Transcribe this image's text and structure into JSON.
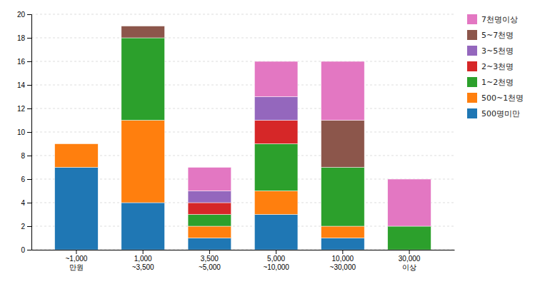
{
  "chart_data": {
    "type": "bar",
    "stacked": true,
    "categories": [
      "~1,000\n만원",
      "1,000\n~3,500",
      "3,500\n~5,000",
      "5,000\n~10,000",
      "10,000\n~30,000",
      "30,000\n이상"
    ],
    "series": [
      {
        "name": "500명미만",
        "values": [
          7,
          4,
          1,
          3,
          1,
          0
        ]
      },
      {
        "name": "500~1천명",
        "values": [
          2,
          7,
          1,
          2,
          1,
          0
        ]
      },
      {
        "name": "1~2천명",
        "values": [
          0,
          7,
          1,
          4,
          5,
          2
        ]
      },
      {
        "name": "2~3천명",
        "values": [
          0,
          0,
          1,
          2,
          0,
          0
        ]
      },
      {
        "name": "3~5천명",
        "values": [
          0,
          0,
          1,
          2,
          0,
          0
        ]
      },
      {
        "name": "5~7천명",
        "values": [
          0,
          1,
          0,
          0,
          4,
          0
        ]
      },
      {
        "name": "7천명이상",
        "values": [
          0,
          0,
          2,
          3,
          5,
          4
        ]
      }
    ],
    "ylim": [
      0,
      20
    ],
    "yticks": [
      0,
      2,
      4,
      6,
      8,
      10,
      12,
      14,
      16,
      18,
      20
    ],
    "grid": true,
    "legend": "right"
  }
}
